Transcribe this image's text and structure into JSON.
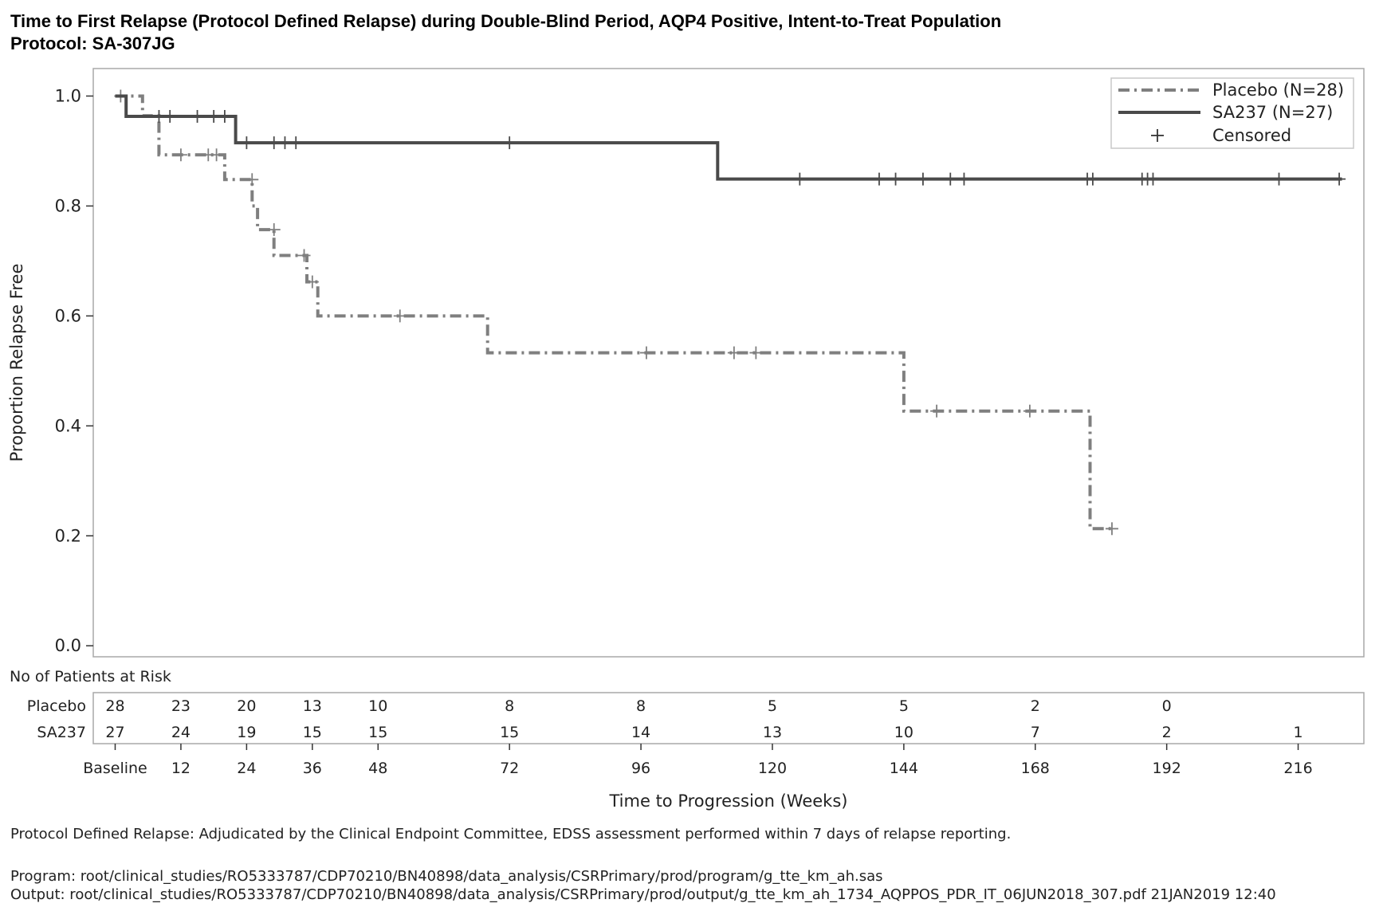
{
  "title": "Time to First Relapse (Protocol Defined Relapse) during Double-Blind Period, AQP4 Positive, Intent-to-Treat Population",
  "subtitle": "Protocol: SA-307JG",
  "chart_data": {
    "type": "line",
    "subtype": "kaplan-meier step",
    "xlabel": "Time to Progression (Weeks)",
    "ylabel": "Proportion Relapse Free",
    "xlim": [
      -4,
      228
    ],
    "ylim": [
      -0.02,
      1.05
    ],
    "x_ticks": [
      {
        "value": 0,
        "label": "Baseline"
      },
      {
        "value": 12,
        "label": "12"
      },
      {
        "value": 24,
        "label": "24"
      },
      {
        "value": 36,
        "label": "36"
      },
      {
        "value": 48,
        "label": "48"
      },
      {
        "value": 72,
        "label": "72"
      },
      {
        "value": 96,
        "label": "96"
      },
      {
        "value": 120,
        "label": "120"
      },
      {
        "value": 144,
        "label": "144"
      },
      {
        "value": 168,
        "label": "168"
      },
      {
        "value": 192,
        "label": "192"
      },
      {
        "value": 216,
        "label": "216"
      }
    ],
    "y_ticks": [
      {
        "value": 0.0,
        "label": "0.0"
      },
      {
        "value": 0.2,
        "label": "0.2"
      },
      {
        "value": 0.4,
        "label": "0.4"
      },
      {
        "value": 0.6,
        "label": "0.6"
      },
      {
        "value": 0.8,
        "label": "0.8"
      },
      {
        "value": 1.0,
        "label": "1.0"
      }
    ],
    "grid": false,
    "legend_position": "top-right",
    "legend": {
      "placebo_label": "Placebo (N=28)",
      "sa237_label": "SA237 (N=27)",
      "censored_label": "Censored"
    },
    "series": [
      {
        "name": "Placebo (N=28)",
        "line_style": "dash-dot",
        "color": "#7f7f7f",
        "steps": [
          [
            0,
            1.0
          ],
          [
            5,
            1.0
          ],
          [
            5,
            0.964
          ],
          [
            8,
            0.964
          ],
          [
            8,
            0.893
          ],
          [
            20,
            0.893
          ],
          [
            20,
            0.848
          ],
          [
            25,
            0.848
          ],
          [
            25,
            0.8
          ],
          [
            26,
            0.8
          ],
          [
            26,
            0.757
          ],
          [
            29,
            0.757
          ],
          [
            29,
            0.71
          ],
          [
            35,
            0.71
          ],
          [
            35,
            0.662
          ],
          [
            37,
            0.662
          ],
          [
            37,
            0.6
          ],
          [
            68,
            0.6
          ],
          [
            68,
            0.533
          ],
          [
            144,
            0.533
          ],
          [
            144,
            0.427
          ],
          [
            178,
            0.427
          ],
          [
            178,
            0.213
          ],
          [
            182,
            0.213
          ]
        ],
        "censored": [
          [
            1,
            1.0
          ],
          [
            12,
            0.893
          ],
          [
            17,
            0.893
          ],
          [
            18.5,
            0.893
          ],
          [
            25,
            0.848
          ],
          [
            29,
            0.757
          ],
          [
            34.5,
            0.71
          ],
          [
            36,
            0.662
          ],
          [
            52,
            0.6
          ],
          [
            97,
            0.533
          ],
          [
            113,
            0.533
          ],
          [
            117,
            0.533
          ],
          [
            150,
            0.427
          ],
          [
            167,
            0.427
          ],
          [
            182,
            0.213
          ]
        ]
      },
      {
        "name": "SA237 (N=27)",
        "line_style": "solid",
        "color": "#4a4a4a",
        "steps": [
          [
            0,
            1.0
          ],
          [
            2,
            1.0
          ],
          [
            2,
            0.963
          ],
          [
            22,
            0.963
          ],
          [
            22,
            0.915
          ],
          [
            110,
            0.915
          ],
          [
            110,
            0.849
          ],
          [
            224,
            0.849
          ]
        ],
        "censored": [
          [
            8,
            0.963
          ],
          [
            10,
            0.963
          ],
          [
            15,
            0.963
          ],
          [
            18,
            0.963
          ],
          [
            20,
            0.963
          ],
          [
            24,
            0.915
          ],
          [
            29,
            0.915
          ],
          [
            31,
            0.915
          ],
          [
            33,
            0.915
          ],
          [
            72,
            0.915
          ],
          [
            125,
            0.849
          ],
          [
            139.5,
            0.849
          ],
          [
            142.5,
            0.849
          ],
          [
            147.5,
            0.849
          ],
          [
            152.5,
            0.849
          ],
          [
            155,
            0.849
          ],
          [
            177.5,
            0.849
          ],
          [
            178.5,
            0.849
          ],
          [
            187.5,
            0.849
          ],
          [
            188.5,
            0.849
          ],
          [
            189.5,
            0.849
          ],
          [
            212.5,
            0.849
          ],
          [
            223.5,
            0.849
          ]
        ]
      }
    ],
    "risk_table": {
      "title": "No of Patients at Risk",
      "times": [
        0,
        12,
        24,
        36,
        48,
        72,
        96,
        120,
        144,
        168,
        192,
        216
      ],
      "rows": [
        {
          "label": "Placebo",
          "values": [
            "28",
            "23",
            "20",
            "13",
            "10",
            "8",
            "8",
            "5",
            "5",
            "2",
            "0",
            ""
          ]
        },
        {
          "label": "SA237",
          "values": [
            "27",
            "24",
            "19",
            "15",
            "15",
            "15",
            "14",
            "13",
            "10",
            "7",
            "2",
            "1"
          ]
        }
      ]
    }
  },
  "footnotes": {
    "note": "Protocol Defined Relapse: Adjudicated by the Clinical Endpoint Committee, EDSS assessment performed within 7 days of relapse reporting.",
    "program": "Program: root/clinical_studies/RO5333787/CDP70210/BN40898/data_analysis/CSRPrimary/prod/program/g_tte_km_ah.sas",
    "output": "Output: root/clinical_studies/RO5333787/CDP70210/BN40898/data_analysis/CSRPrimary/prod/output/g_tte_km_ah_1734_AQPPOS_PDR_IT_06JUN2018_307.pdf 21JAN2019 12:40"
  }
}
